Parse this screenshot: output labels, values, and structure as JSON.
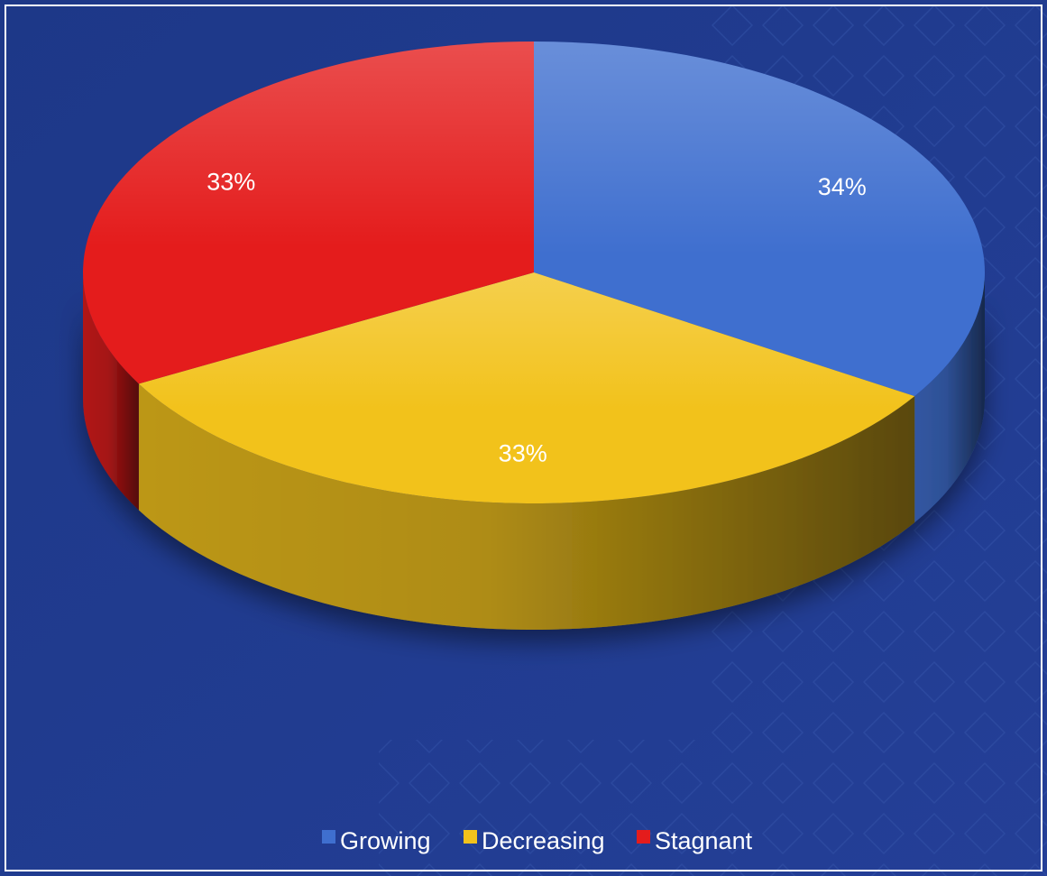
{
  "chart_data": {
    "type": "pie",
    "variant": "3d",
    "categories": [
      "Growing",
      "Decreasing",
      "Stagnant"
    ],
    "values": [
      34,
      33,
      33
    ],
    "labels": [
      "34%",
      "33%",
      "33%"
    ],
    "colors": [
      "#3f6fcf",
      "#f2c21b",
      "#e41c1c"
    ],
    "legend": {
      "position": "bottom",
      "items": [
        "Growing",
        "Decreasing",
        "Stagnant"
      ]
    },
    "title": ""
  },
  "background_color": "#1f3a8f"
}
